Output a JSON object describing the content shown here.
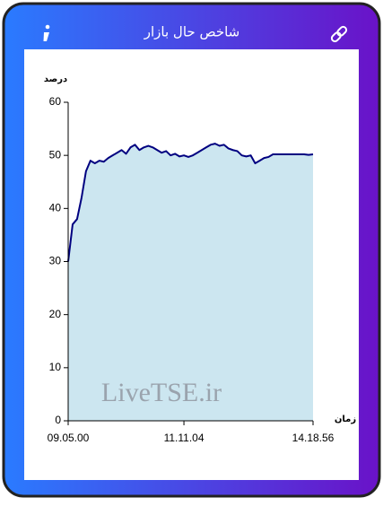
{
  "chart_data": {
    "type": "area",
    "title": "شاخص حال بازار",
    "y_label": "درصد",
    "x_label": "زمان",
    "watermark": "LiveTSE.ir",
    "values": [
      30,
      37,
      38,
      42,
      47,
      49,
      48.5,
      49,
      48.8,
      49.5,
      50,
      50.5,
      51,
      50.3,
      51.5,
      52,
      51,
      51.5,
      51.8,
      51.5,
      51,
      50.5,
      50.8,
      50,
      50.3,
      49.8,
      50,
      49.7,
      50,
      50.5,
      51,
      51.5,
      52,
      52.2,
      51.8,
      52,
      51.3,
      51,
      50.8,
      50,
      49.8,
      50,
      48.5,
      49,
      49.5,
      49.7,
      50.2,
      50.2,
      50.2,
      50.2,
      50.2,
      50.2,
      50.2,
      50.2,
      50.1,
      50.2
    ],
    "xlim": [
      0,
      55
    ],
    "xticks": [
      {
        "value": 0,
        "label": "09.05.00"
      },
      {
        "value": 26,
        "label": "11.11.04"
      },
      {
        "value": 55,
        "label": "14.18.56"
      }
    ],
    "ylim": [
      0,
      60
    ],
    "yticks": [
      0,
      10,
      20,
      30,
      40,
      50,
      60
    ],
    "line_color": "#000080",
    "fill_color": "#cce6f0"
  }
}
